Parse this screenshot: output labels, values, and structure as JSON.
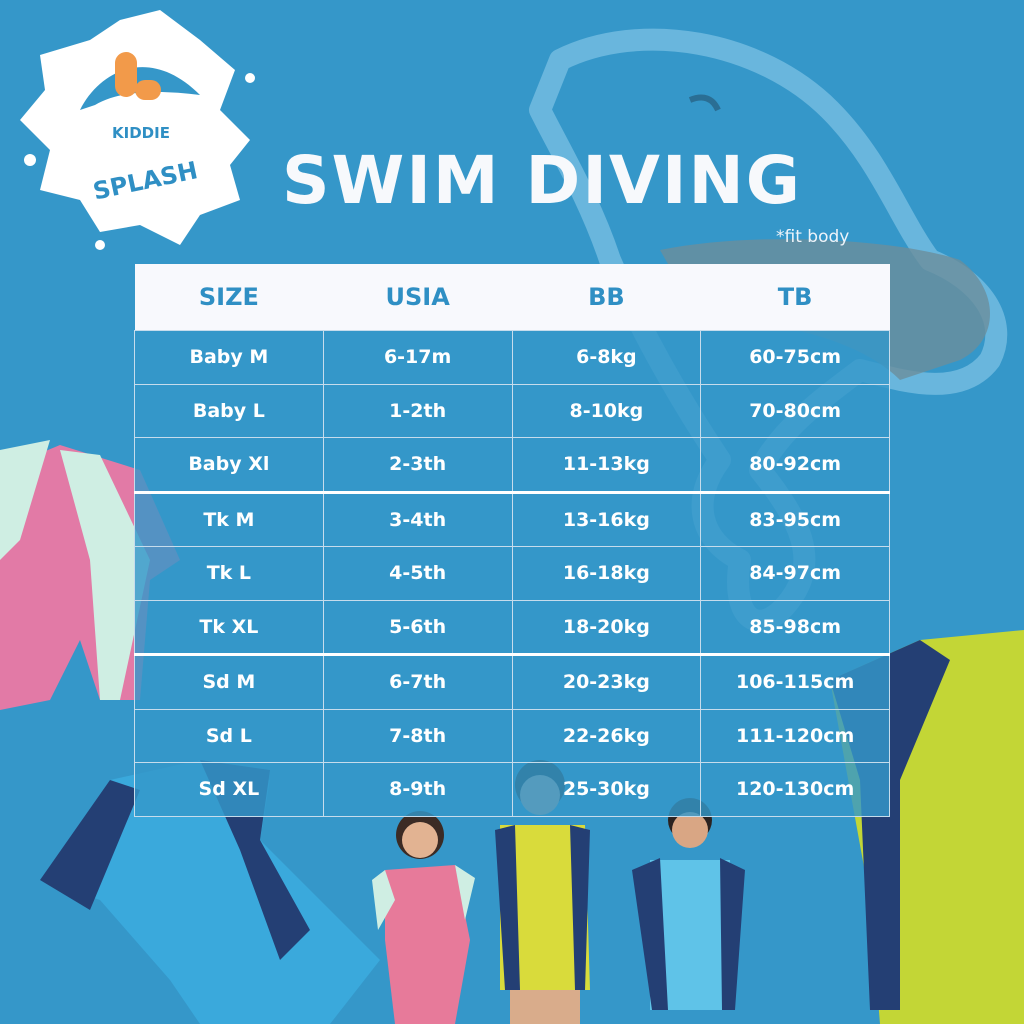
{
  "brand": {
    "name_line1": "KIDDIE",
    "name_line2": "SPLASH"
  },
  "title": "SWIM DIVING",
  "note": "*fit body",
  "table": {
    "headers": [
      "SIZE",
      "USIA",
      "BB",
      "TB"
    ],
    "rows": [
      [
        "Baby M",
        "6-17m",
        "6-8kg",
        "60-75cm"
      ],
      [
        "Baby L",
        "1-2th",
        "8-10kg",
        "70-80cm"
      ],
      [
        "Baby Xl",
        "2-3th",
        "11-13kg",
        "80-92cm"
      ],
      [
        "Tk M",
        "3-4th",
        "13-16kg",
        "83-95cm"
      ],
      [
        "Tk L",
        "4-5th",
        "16-18kg",
        "84-97cm"
      ],
      [
        "Tk XL",
        "5-6th",
        "18-20kg",
        "85-98cm"
      ],
      [
        "Sd M",
        "6-7th",
        "20-23kg",
        "106-115cm"
      ],
      [
        "Sd L",
        "7-8th",
        "22-26kg",
        "111-120cm"
      ],
      [
        "Sd XL",
        "8-9th",
        "25-30kg",
        "120-130cm"
      ]
    ]
  },
  "colors": {
    "background": "#3597c9",
    "header_bg": "#f8f9fd",
    "header_text": "#2f8fc4",
    "pink_suit": "#e27aa6",
    "blue_suit": "#3aa9dc",
    "lime_suit": "#c3d636",
    "navy": "#243f74",
    "logo_orange": "#f29a4a"
  }
}
